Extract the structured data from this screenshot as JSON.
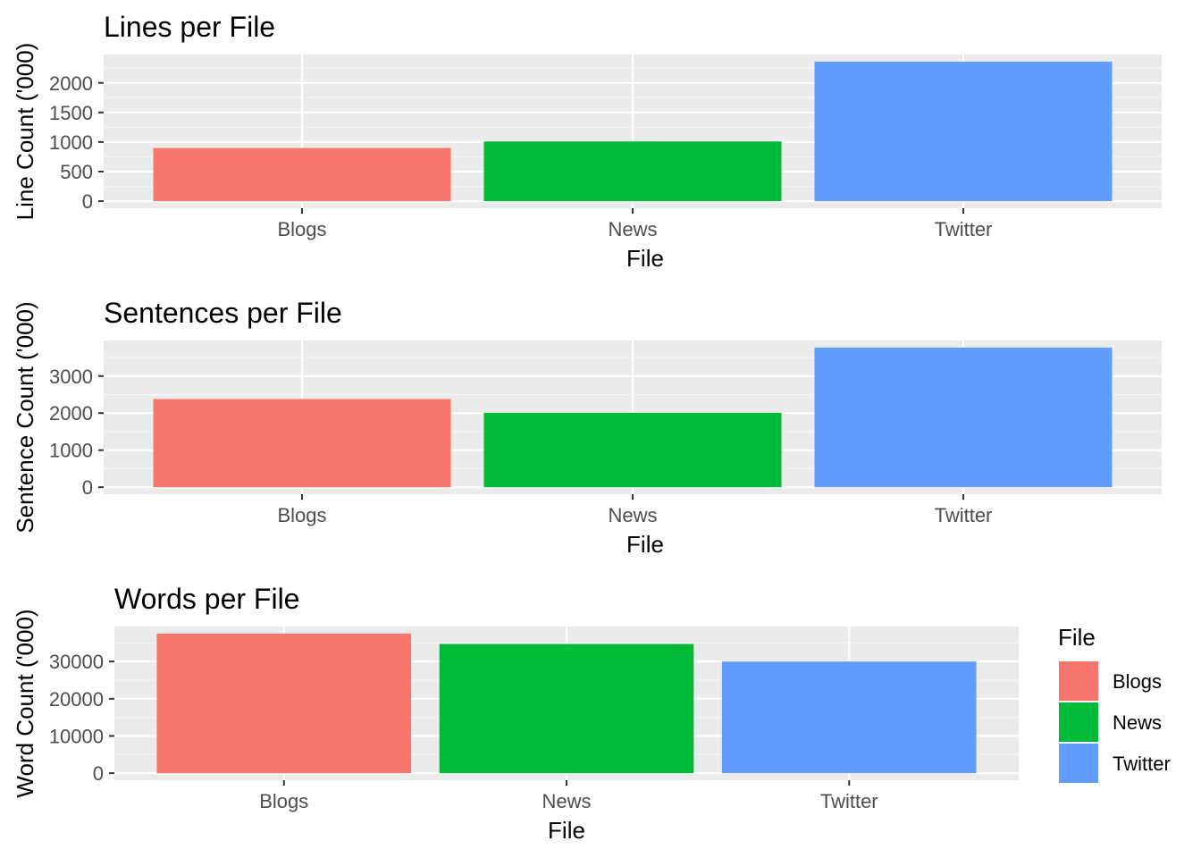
{
  "chart_data": [
    {
      "type": "bar",
      "title": "Lines per File",
      "xlabel": "File",
      "ylabel": "Line Count ('000)",
      "categories": [
        "Blogs",
        "News",
        "Twitter"
      ],
      "values": [
        899,
        1010,
        2360
      ],
      "ylim": [
        -120,
        2480
      ],
      "yticks": [
        0,
        500,
        1000,
        1500,
        2000
      ],
      "grid": true
    },
    {
      "type": "bar",
      "title": "Sentences per File",
      "xlabel": "File",
      "ylabel": "Sentence Count ('000)",
      "categories": [
        "Blogs",
        "News",
        "Twitter"
      ],
      "values": [
        2380,
        2010,
        3770
      ],
      "ylim": [
        -190,
        3960
      ],
      "yticks": [
        0,
        1000,
        2000,
        3000
      ],
      "grid": true
    },
    {
      "type": "bar",
      "title": "Words per File",
      "xlabel": "File",
      "ylabel": "Word Count ('000)",
      "categories": [
        "Blogs",
        "News",
        "Twitter"
      ],
      "values": [
        37500,
        34700,
        30000
      ],
      "ylim": [
        -1900,
        39400
      ],
      "yticks": [
        0,
        10000,
        20000,
        30000
      ],
      "grid": true
    }
  ],
  "legend": {
    "title": "File",
    "position": "right",
    "items": [
      {
        "label": "Blogs",
        "color": "#F8766D"
      },
      {
        "label": "News",
        "color": "#00BA38"
      },
      {
        "label": "Twitter",
        "color": "#619CFF"
      }
    ]
  },
  "colors": {
    "Blogs": "#F8766D",
    "News": "#00BA38",
    "Twitter": "#619CFF",
    "panel": "#EBEBEB",
    "grid_major": "#FFFFFF",
    "grid_minor": "#F5F5F5",
    "tick_text": "#4D4D4D",
    "tick_mark": "#333333"
  }
}
